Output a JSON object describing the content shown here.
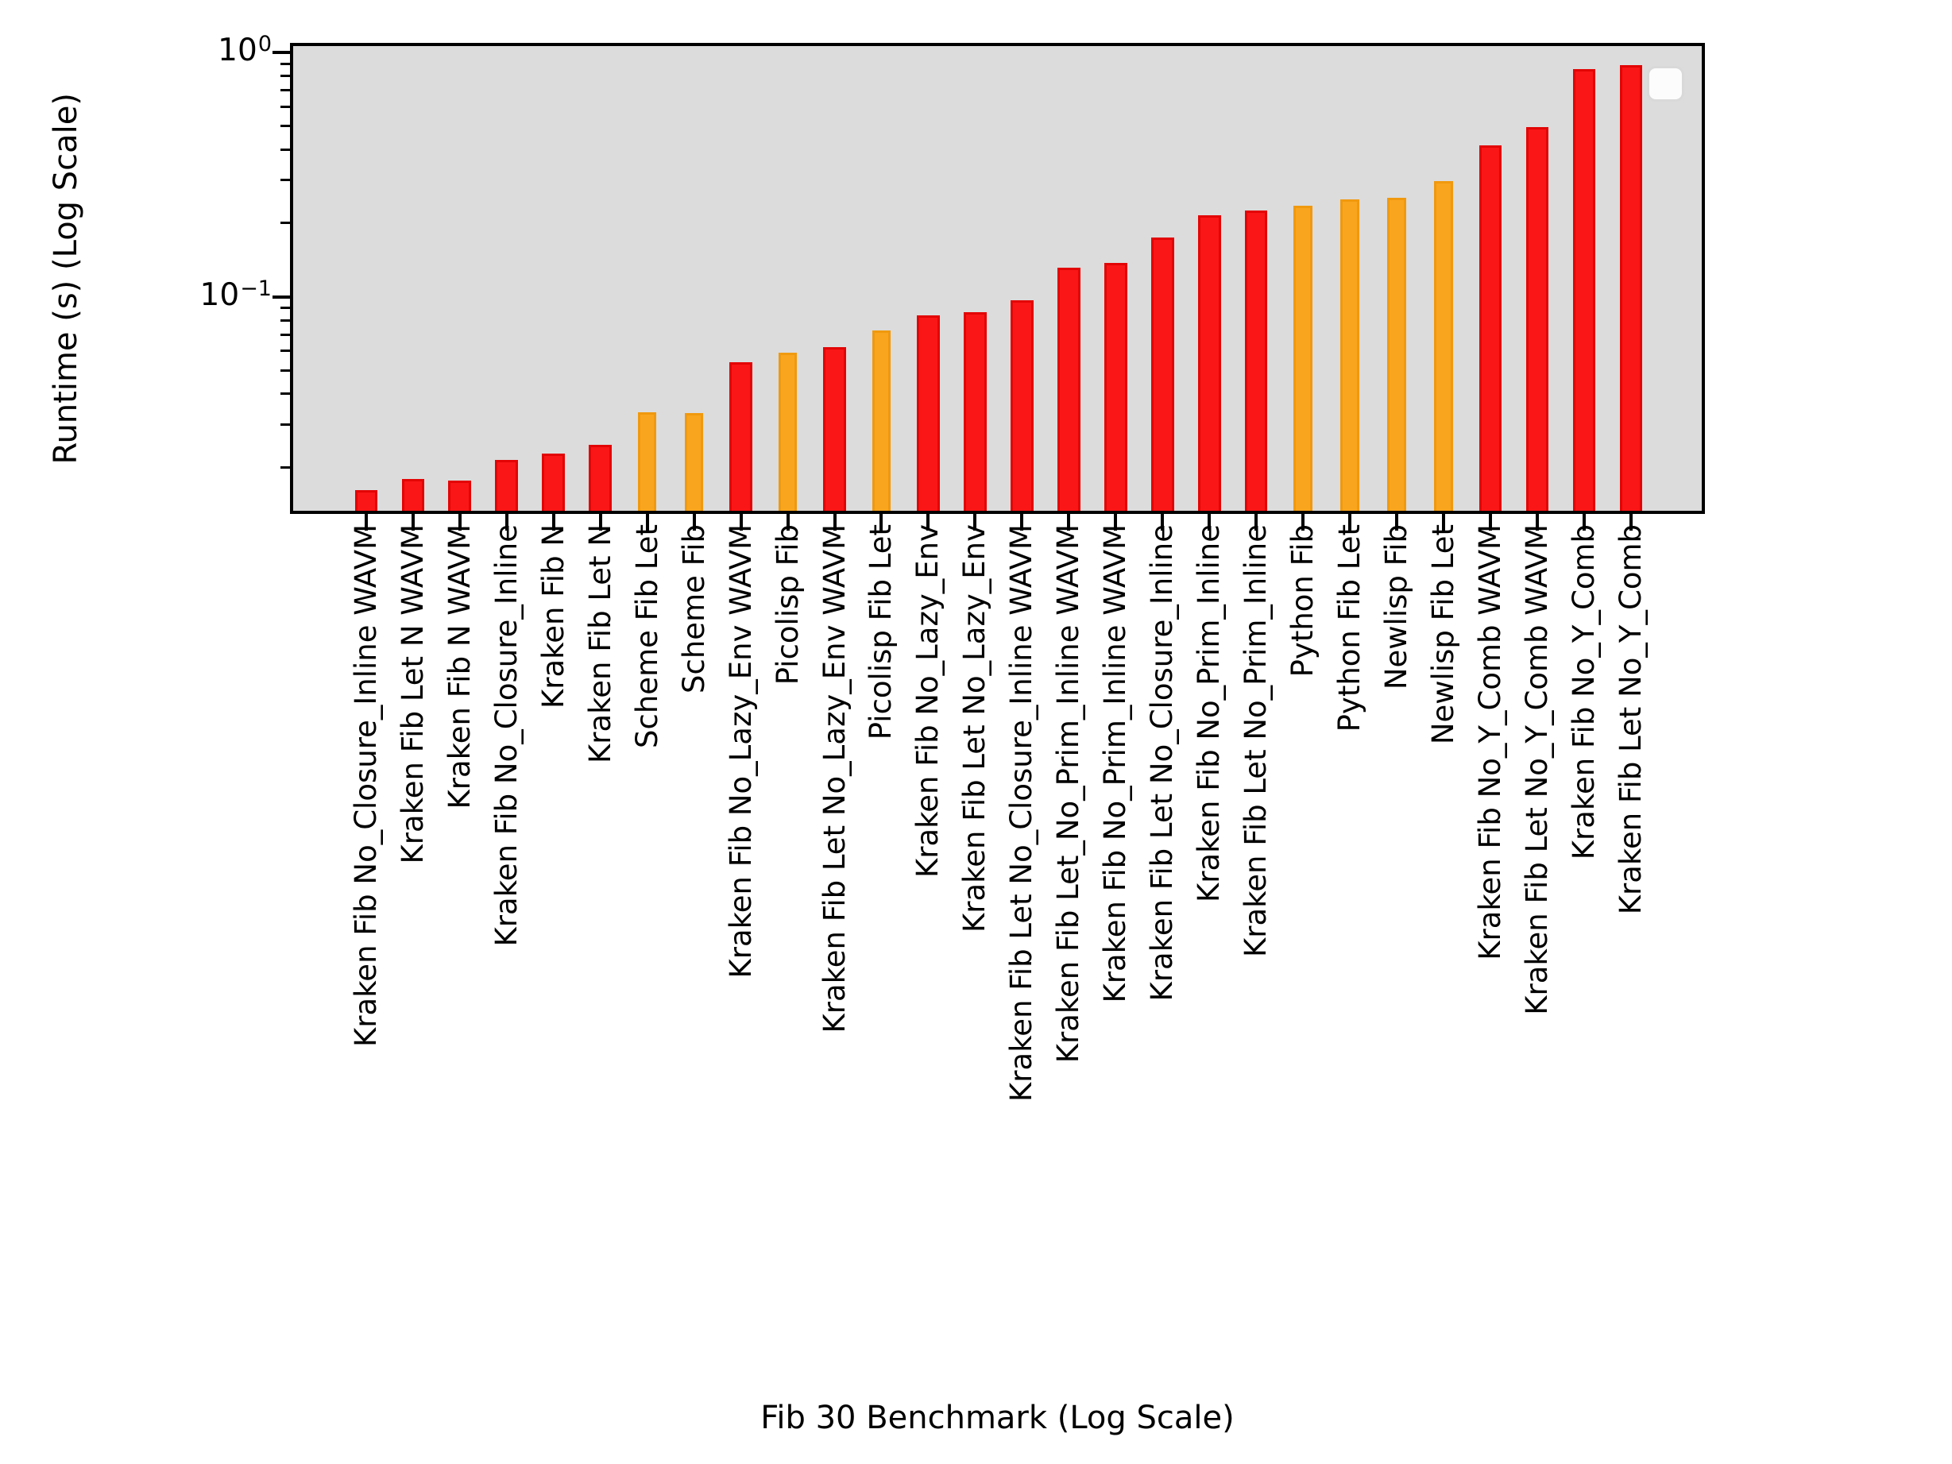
{
  "figure": {
    "xlabel": "Fib 30 Benchmark (Log Scale)",
    "ylabel": "Runtime (s) (Log Scale)"
  },
  "legend": {
    "entries": []
  },
  "chart_data": {
    "type": "bar",
    "title": "",
    "xlabel": "Fib 30 Benchmark (Log Scale)",
    "ylabel": "Runtime (s) (Log Scale)",
    "y_scale": "log",
    "ylim": [
      0.0131,
      1.078
    ],
    "grid": false,
    "legend_position": "upper right",
    "plot_bg": "#dcdcdc",
    "bar_colors": {
      "red": "#fa1616",
      "orange": "#f9a51e"
    },
    "bar_edge_colors": {
      "red": "#e30505",
      "orange": "#f0990e"
    },
    "yticks_major": [
      {
        "mantissa": "10",
        "exponent": "0",
        "value": 1
      },
      {
        "mantissa": "10",
        "exponent": "−1",
        "value": 0.1
      }
    ],
    "yticks_minor": [
      0.9,
      0.8,
      0.7,
      0.6,
      0.5,
      0.4,
      0.3,
      0.2,
      0.09,
      0.08,
      0.07,
      0.06,
      0.05,
      0.04,
      0.03,
      0.02
    ],
    "categories": [
      "Kraken Fib No_Closure_Inline WAVM",
      "Kraken Fib Let N WAVM",
      "Kraken Fib N WAVM",
      "Kraken Fib No_Closure_Inline",
      "Kraken Fib N",
      "Kraken Fib Let N",
      "Scheme Fib Let",
      "Scheme Fib",
      "Kraken Fib No_Lazy_Env WAVM",
      "Picolisp Fib",
      "Kraken Fib Let No_Lazy_Env WAVM",
      "Picolisp Fib Let",
      "Kraken Fib No_Lazy_Env",
      "Kraken Fib Let No_Lazy_Env",
      "Kraken Fib Let No_Closure_Inline WAVM",
      "Kraken Fib Let_No_Prim_Inline WAVM",
      "Kraken Fib No_Prim_Inline WAVM",
      "Kraken Fib Let No_Closure_Inline",
      "Kraken Fib No_Prim_Inline",
      "Kraken Fib Let No_Prim_Inline",
      "Python Fib",
      "Python Fib Let",
      "Newlisp Fib",
      "Newlisp Fib Let",
      "Kraken Fib No_Y_Comb WAVM",
      "Kraken Fib Let No_Y_Comb WAVM",
      "Kraken Fib No_Y_Comb",
      "Kraken Fib Let No_Y_Comb"
    ],
    "values": [
      0.0161,
      0.0179,
      0.0177,
      0.0215,
      0.0228,
      0.0248,
      0.0337,
      0.0335,
      0.0538,
      0.059,
      0.0622,
      0.0726,
      0.0837,
      0.0863,
      0.0965,
      0.131,
      0.138,
      0.175,
      0.215,
      0.225,
      0.235,
      0.251,
      0.254,
      0.297,
      0.417,
      0.493,
      0.852,
      0.885
    ],
    "colors": [
      "red",
      "red",
      "red",
      "red",
      "red",
      "red",
      "orange",
      "orange",
      "red",
      "orange",
      "red",
      "orange",
      "red",
      "red",
      "red",
      "red",
      "red",
      "red",
      "red",
      "red",
      "orange",
      "orange",
      "orange",
      "orange",
      "red",
      "red",
      "red",
      "red"
    ]
  }
}
